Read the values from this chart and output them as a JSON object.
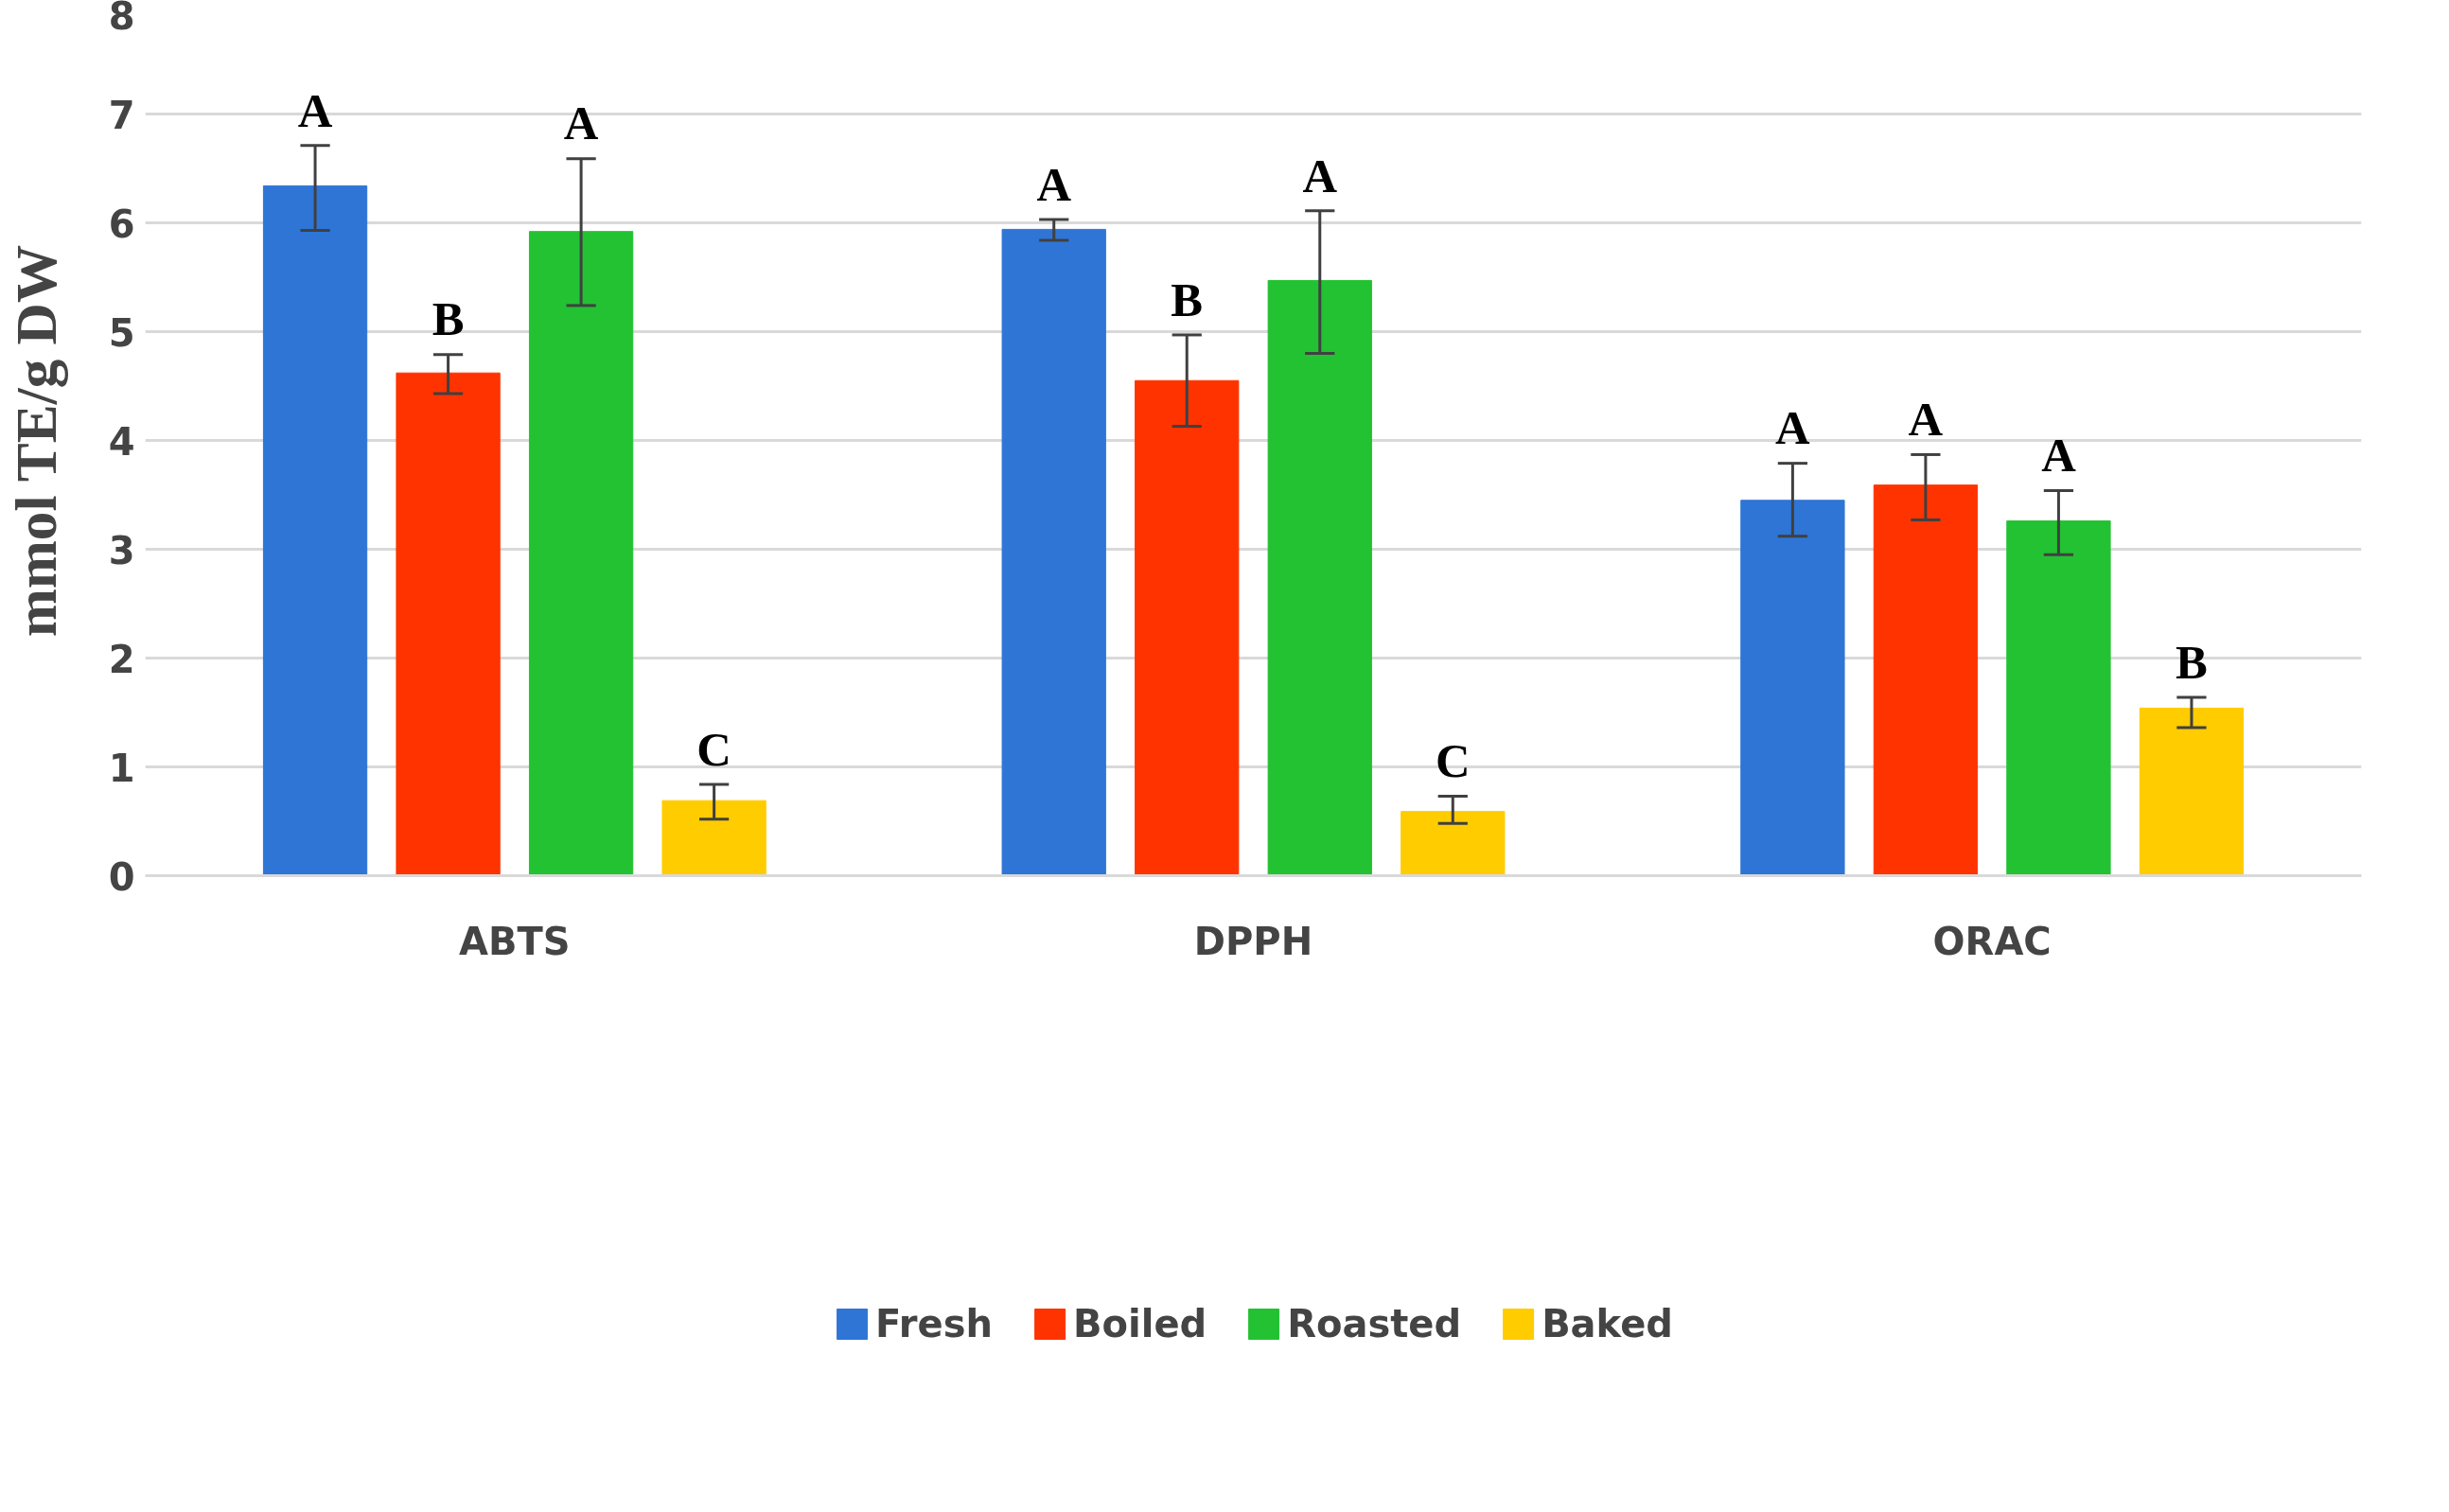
{
  "chart_data": {
    "type": "bar",
    "ylabel": "mmol TE/g DW",
    "categories": [
      "ABTS",
      "DPPH",
      "ORAC"
    ],
    "series": [
      {
        "name": "Fresh",
        "color": "#2e75d6",
        "values": [
          6.34,
          5.94,
          3.45
        ],
        "errors": [
          [
            5.93,
            6.71
          ],
          [
            5.84,
            6.03
          ],
          [
            3.12,
            3.79
          ]
        ],
        "value_labels": [
          "A",
          "A",
          "A"
        ]
      },
      {
        "name": "Boiled",
        "color": "#ff3300",
        "values": [
          4.62,
          4.55,
          3.59
        ],
        "errors": [
          [
            4.43,
            4.79
          ],
          [
            4.13,
            4.97
          ],
          [
            3.27,
            3.87
          ]
        ],
        "value_labels": [
          "B",
          "B",
          "A"
        ]
      },
      {
        "name": "Roasted",
        "color": "#22c232",
        "values": [
          5.92,
          5.47,
          3.26
        ],
        "errors": [
          [
            5.24,
            6.59
          ],
          [
            4.8,
            6.11
          ],
          [
            2.95,
            3.54
          ]
        ],
        "value_labels": [
          "A",
          "A",
          "A"
        ]
      },
      {
        "name": "Baked",
        "color": "#ffcc00",
        "values": [
          0.69,
          0.59,
          1.54
        ],
        "errors": [
          [
            0.52,
            0.84
          ],
          [
            0.48,
            0.73
          ],
          [
            1.36,
            1.64
          ]
        ],
        "value_labels": [
          "C",
          "C",
          "B"
        ]
      }
    ],
    "ylim": [
      0,
      8
    ],
    "yticks": [
      0,
      1,
      2,
      3,
      4,
      5,
      6,
      7,
      8
    ],
    "grid": "y",
    "legend": "bottom"
  }
}
